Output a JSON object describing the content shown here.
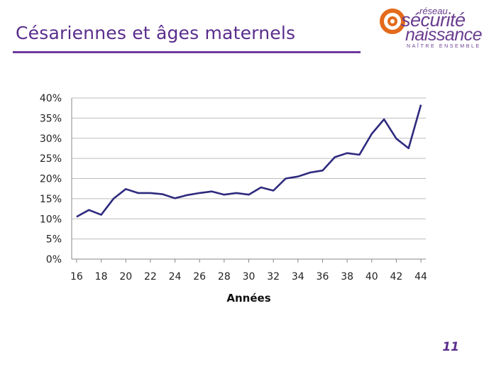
{
  "slide": {
    "title": "Césariennes et âges maternels",
    "page_number": "11",
    "title_color": "#5a2d8c"
  },
  "logo": {
    "line1": "réseau",
    "line2": "sécurité",
    "line3": "naissance",
    "tagline": "NAÎTRE ENSEMBLE",
    "accent_color": "#e36a1a",
    "text_color": "#6a3d8f"
  },
  "chart_data": {
    "type": "line",
    "title": "",
    "xlabel": "Années",
    "ylabel": "",
    "x": [
      16,
      17,
      18,
      19,
      20,
      21,
      22,
      23,
      24,
      25,
      26,
      27,
      28,
      29,
      30,
      31,
      32,
      33,
      34,
      35,
      36,
      37,
      38,
      39,
      40,
      41,
      42,
      43,
      44
    ],
    "series": [
      {
        "values": [
          0.105,
          0.122,
          0.11,
          0.15,
          0.174,
          0.164,
          0.164,
          0.161,
          0.151,
          0.159,
          0.164,
          0.168,
          0.16,
          0.164,
          0.16,
          0.178,
          0.17,
          0.2,
          0.205,
          0.215,
          0.22,
          0.253,
          0.263,
          0.259,
          0.311,
          0.347,
          0.299,
          0.275,
          0.383
        ],
        "color": "#2e2a7e"
      }
    ],
    "xlim": [
      15.6,
      44.4
    ],
    "ylim": [
      0,
      0.4
    ],
    "x_ticks": [
      16,
      18,
      20,
      22,
      24,
      26,
      28,
      30,
      32,
      34,
      36,
      38,
      40,
      42,
      44
    ],
    "x_tick_labels": [
      "16",
      "18",
      "20",
      "22",
      "24",
      "26",
      "28",
      "30",
      "32",
      "34",
      "36",
      "38",
      "40",
      "42",
      "44"
    ],
    "y_ticks": [
      0,
      0.05,
      0.1,
      0.15,
      0.2,
      0.25,
      0.3,
      0.35,
      0.4
    ],
    "y_tick_labels": [
      "0%",
      "5%",
      "10%",
      "15%",
      "20%",
      "25%",
      "30%",
      "35%",
      "40%"
    ],
    "grid": true,
    "grid_color": "#bdbdbd",
    "legend": "none"
  }
}
